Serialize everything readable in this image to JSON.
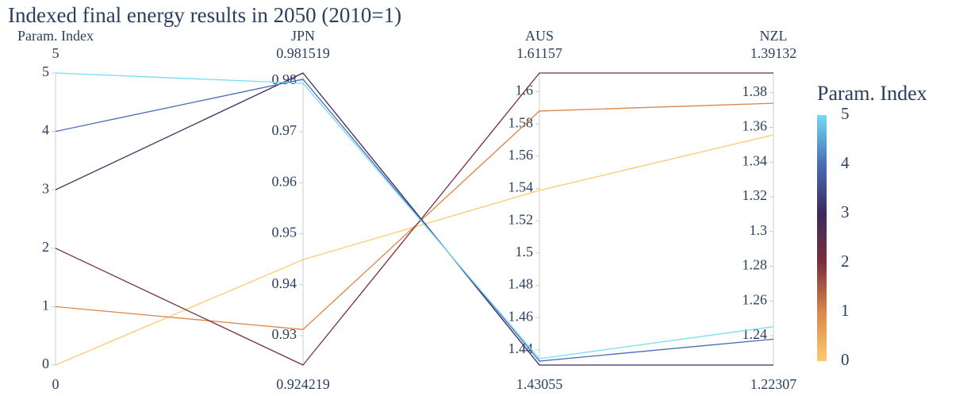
{
  "chart_data": {
    "type": "parallel",
    "title": "Indexed final energy results in 2050 (2010=1)",
    "color_dimension": 0,
    "colorscale": [
      [
        0,
        "#fdcb6e"
      ],
      [
        0.2,
        "#d9864a"
      ],
      [
        0.4,
        "#7a2f3c"
      ],
      [
        0.6,
        "#3b2a5c"
      ],
      [
        0.8,
        "#4a6db5"
      ],
      [
        1,
        "#72dcf5"
      ]
    ],
    "colorbar": {
      "title": "Param. Index",
      "lim": [
        0,
        5
      ],
      "ticks": [
        0,
        1,
        2,
        3,
        4,
        5
      ]
    },
    "dimensions": [
      {
        "label": "Param. Index",
        "range": [
          0,
          5
        ],
        "ticks": [
          0,
          1,
          2,
          3,
          4,
          5
        ],
        "values": [
          0,
          1,
          2,
          3,
          4,
          5
        ]
      },
      {
        "label": "JPN",
        "range": [
          0.924219,
          0.981519
        ],
        "ticks": [
          0.93,
          0.94,
          0.95,
          0.96,
          0.97,
          0.98
        ],
        "values": [
          0.9449,
          0.9312,
          0.924219,
          0.981519,
          0.9803,
          0.9795
        ]
      },
      {
        "label": "AUS",
        "range": [
          1.43055,
          1.61157
        ],
        "ticks": [
          1.44,
          1.46,
          1.48,
          1.5,
          1.52,
          1.54,
          1.56,
          1.58,
          1.6
        ],
        "values": [
          1.5388,
          1.588,
          1.61157,
          1.43055,
          1.433,
          1.4345
        ]
      },
      {
        "label": "NZL",
        "range": [
          1.22307,
          1.39132
        ],
        "ticks": [
          1.24,
          1.26,
          1.28,
          1.3,
          1.32,
          1.34,
          1.36,
          1.38
        ],
        "values": [
          1.3557,
          1.3739,
          1.39132,
          1.22307,
          1.238,
          1.2452
        ]
      }
    ]
  }
}
